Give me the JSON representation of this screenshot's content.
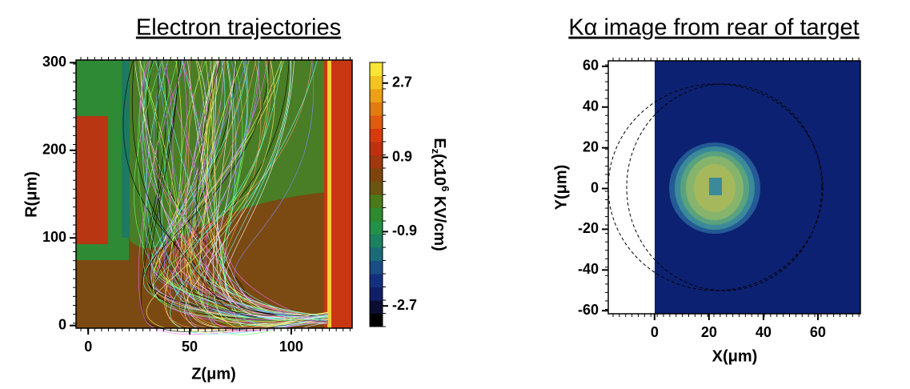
{
  "chart_data": [
    {
      "type": "field-map",
      "title": "Electron trajectories",
      "xlabel": "Z(μm)",
      "ylabel": "R(μm)",
      "xlim": [
        -6,
        130
      ],
      "ylim": [
        -3,
        303
      ],
      "xticks": [
        0,
        50,
        100
      ],
      "yticks": [
        0,
        100,
        200,
        300
      ],
      "colorbar": {
        "label": {
          "base": "E",
          "sub": "z",
          "mid": "(x10",
          "sup": "6",
          "end": " KV/cm)"
        },
        "lim": [
          -3.2,
          3.2
        ],
        "ticks": [
          2.7,
          0.9,
          -0.9,
          -2.7
        ],
        "colors": [
          "#000000",
          "#0b0d33",
          "#101f66",
          "#14307d",
          "#1a4d84",
          "#1c6a78",
          "#1d8060",
          "#249048",
          "#2f8a2e",
          "#4a7a1c",
          "#6a5512",
          "#7e4410",
          "#a03810",
          "#c03010",
          "#d83a10",
          "#e05a10",
          "#e07c12",
          "#eca014",
          "#f4c41e",
          "#fae630"
        ]
      }
    },
    {
      "type": "image",
      "title": "Kα image from rear of target",
      "xlabel": "X(μm)",
      "ylabel": "Y(μm)",
      "xlim": [
        -17,
        75.6
      ],
      "ylim": [
        -61.5,
        62.7
      ],
      "xticks": [
        0,
        20,
        40,
        60
      ],
      "yticks": [
        60,
        40,
        20,
        0,
        -20,
        -40,
        -60
      ]
    }
  ]
}
